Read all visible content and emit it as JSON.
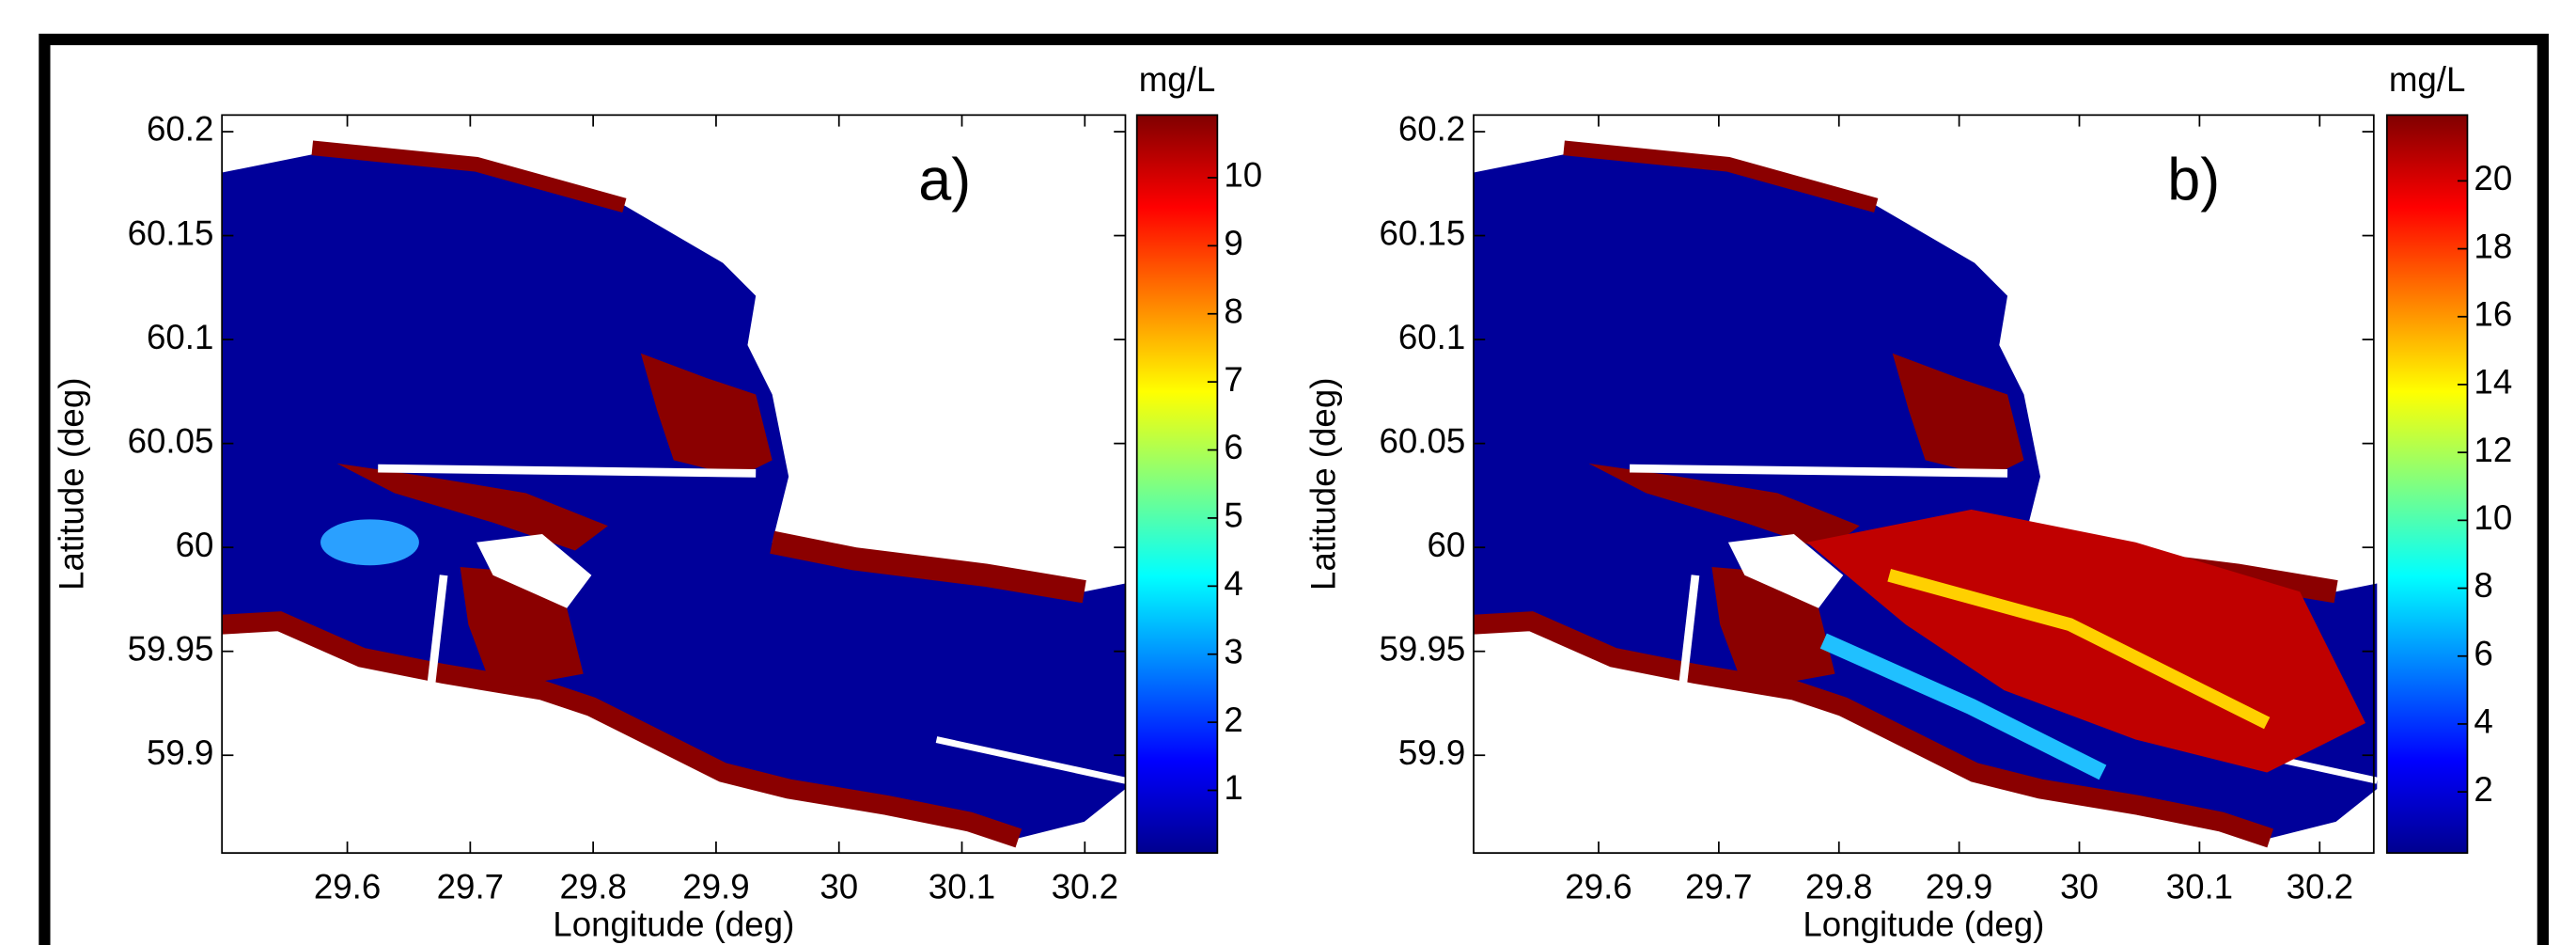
{
  "chart_data": [
    {
      "type": "heatmap",
      "panel_label": "a)",
      "xlabel": "Longitude (deg)",
      "ylabel": "Latitude (deg)",
      "xlim": [
        29.498,
        30.233
      ],
      "ylim": [
        59.853,
        60.208
      ],
      "xticks": [
        29.6,
        29.7,
        29.8,
        29.9,
        30,
        30.1,
        30.2
      ],
      "yticks": [
        59.9,
        59.95,
        60,
        60.05,
        60.1,
        60.15,
        60.2
      ],
      "colormap": "jet",
      "colorbar": {
        "label": "mg/L",
        "lim": [
          0.08,
          10.92
        ],
        "ticks": [
          1,
          2,
          3,
          4,
          5,
          6,
          7,
          8,
          9,
          10
        ]
      }
    },
    {
      "type": "heatmap",
      "panel_label": "b)",
      "xlabel": "Longitude (deg)",
      "ylabel": "Latitude (deg)",
      "xlim": [
        29.496,
        30.245
      ],
      "ylim": [
        59.853,
        60.208
      ],
      "xticks": [
        29.6,
        29.7,
        29.8,
        29.9,
        30,
        30.1,
        30.2
      ],
      "yticks": [
        59.9,
        59.95,
        60,
        60.05,
        60.1,
        60.15,
        60.2
      ],
      "colormap": "jet",
      "colorbar": {
        "label": "mg/L",
        "lim": [
          0.2,
          21.94
        ],
        "ticks": [
          2,
          4,
          6,
          8,
          10,
          12,
          14,
          16,
          18,
          20
        ]
      }
    }
  ]
}
